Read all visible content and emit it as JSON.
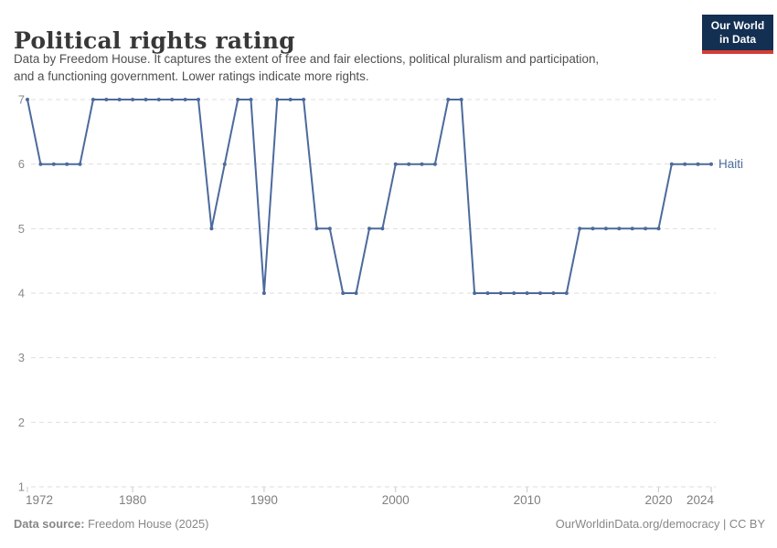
{
  "header": {
    "title": "Political rights rating",
    "subtitle_line1": "Data by Freedom House. It captures the extent of free and fair elections, political pluralism and participation,",
    "subtitle_line2": "and a functioning government. Lower ratings indicate more rights.",
    "logo": {
      "line1": "Our World",
      "line2": "in Data",
      "bg_color": "#132f52",
      "bar_color": "#d53d32"
    }
  },
  "chart_data": {
    "type": "line",
    "title": "Political rights rating",
    "x": [
      1972,
      1973,
      1974,
      1975,
      1976,
      1977,
      1978,
      1979,
      1980,
      1981,
      1982,
      1983,
      1984,
      1985,
      1986,
      1987,
      1988,
      1989,
      1990,
      1991,
      1992,
      1993,
      1994,
      1995,
      1996,
      1997,
      1998,
      1999,
      2000,
      2001,
      2002,
      2003,
      2004,
      2005,
      2006,
      2007,
      2008,
      2009,
      2010,
      2011,
      2012,
      2013,
      2014,
      2015,
      2016,
      2017,
      2018,
      2019,
      2020,
      2021,
      2022,
      2023,
      2024
    ],
    "series": [
      {
        "name": "Haiti",
        "color": "#4C6A9C",
        "values": [
          7,
          6,
          6,
          6,
          6,
          7,
          7,
          7,
          7,
          7,
          7,
          7,
          7,
          7,
          5,
          6,
          7,
          7,
          4,
          7,
          7,
          7,
          5,
          5,
          4,
          4,
          5,
          5,
          6,
          6,
          6,
          6,
          7,
          7,
          4,
          4,
          4,
          4,
          4,
          4,
          4,
          4,
          5,
          5,
          5,
          5,
          5,
          5,
          5,
          6,
          6,
          6,
          6
        ]
      }
    ],
    "xlim": [
      1972,
      2024
    ],
    "ylim": [
      1,
      7
    ],
    "yticks": [
      1,
      2,
      3,
      4,
      5,
      6,
      7
    ],
    "xticks": [
      1972,
      1980,
      1990,
      2000,
      2010,
      2020,
      2024
    ],
    "grid": true,
    "grid_color": "#dedede",
    "axis_text_color": "#7f7f7f",
    "legend": "end-of-line label"
  },
  "footer": {
    "data_source_label": "Data source:",
    "data_source_value": " Freedom House (2025)",
    "credit": "OurWorldinData.org/democracy | CC BY"
  }
}
